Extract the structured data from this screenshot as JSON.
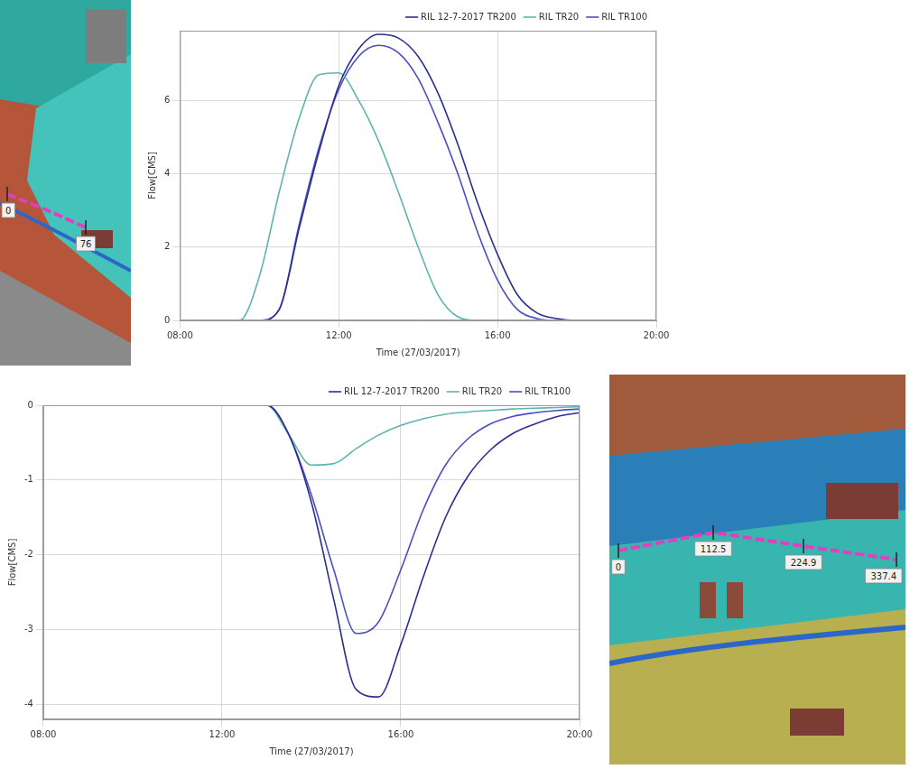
{
  "chart_data": [
    {
      "type": "line",
      "x_label": "Time (27/03/2017)",
      "y_label": "Flow[CMS]",
      "x": [
        8,
        8.5,
        9,
        9.5,
        10,
        10.5,
        11,
        11.5,
        12,
        12.5,
        13,
        13.5,
        14,
        14.5,
        15,
        15.5,
        16,
        16.5,
        17,
        17.5,
        18,
        18.5,
        19,
        19.5,
        20
      ],
      "xlim": [
        8,
        20
      ],
      "xticks": [
        {
          "value": 8,
          "label": "08:00"
        },
        {
          "value": 12,
          "label": "12:00"
        },
        {
          "value": 16,
          "label": "16:00"
        },
        {
          "value": 20,
          "label": "20:00"
        }
      ],
      "ylim": [
        0,
        7.9
      ],
      "yticks": [
        0,
        2,
        4,
        6
      ],
      "grid": true,
      "legend": "top-right",
      "series": [
        {
          "name": "RIL 12-7-2017 TR200",
          "color": "#2b2f8f",
          "values": [
            0,
            0,
            0,
            0,
            0,
            0.3,
            2.5,
            4.6,
            6.4,
            7.4,
            7.8,
            7.7,
            7.2,
            6.2,
            4.8,
            3.2,
            1.8,
            0.7,
            0.2,
            0.05,
            0,
            0,
            0,
            0,
            0
          ]
        },
        {
          "name": "RIL TR20",
          "color": "#5bb5b0",
          "values": [
            0,
            0,
            0,
            0,
            1.2,
            3.5,
            5.5,
            6.7,
            6.75,
            6.0,
            4.9,
            3.5,
            2.0,
            0.7,
            0.1,
            0,
            0,
            0,
            0,
            0,
            0,
            0,
            0,
            0,
            0
          ]
        },
        {
          "name": "RIL TR100",
          "color": "#4a4fc4",
          "values": [
            0,
            0,
            0,
            0,
            0,
            0.3,
            2.6,
            4.7,
            6.3,
            7.2,
            7.5,
            7.3,
            6.6,
            5.4,
            4.0,
            2.4,
            1.1,
            0.3,
            0.05,
            0,
            0,
            0,
            0,
            0,
            0
          ]
        }
      ]
    },
    {
      "type": "line",
      "x_label": "Time (27/03/2017)",
      "y_label": "Flow[CMS]",
      "x": [
        8,
        8.5,
        9,
        9.5,
        10,
        10.5,
        11,
        11.5,
        12,
        12.5,
        13,
        13.5,
        14,
        14.5,
        15,
        15.5,
        16,
        16.5,
        17,
        17.5,
        18,
        18.5,
        19,
        19.5,
        20
      ],
      "xlim": [
        8,
        20
      ],
      "xticks": [
        {
          "value": 8,
          "label": "08:00"
        },
        {
          "value": 12,
          "label": "12:00"
        },
        {
          "value": 16,
          "label": "16:00"
        },
        {
          "value": 20,
          "label": "20:00"
        }
      ],
      "ylim": [
        -4.2,
        0
      ],
      "yticks": [
        -4,
        -3,
        -2,
        -1,
        0
      ],
      "grid": true,
      "legend": "top-right",
      "series": [
        {
          "name": "RIL 12-7-2017 TR200",
          "color": "#2b2f8f",
          "values": [
            0,
            0,
            0,
            0,
            0,
            0,
            0,
            0,
            0,
            0,
            0,
            -0.4,
            -1.3,
            -2.6,
            -3.8,
            -3.9,
            -3.2,
            -2.3,
            -1.5,
            -0.95,
            -0.6,
            -0.38,
            -0.25,
            -0.15,
            -0.1
          ]
        },
        {
          "name": "RIL TR20",
          "color": "#5bb5b0",
          "values": [
            0,
            0,
            0,
            0,
            0,
            0,
            0,
            0,
            0,
            0,
            0,
            -0.4,
            -0.8,
            -0.78,
            -0.58,
            -0.4,
            -0.27,
            -0.18,
            -0.12,
            -0.09,
            -0.07,
            -0.05,
            -0.04,
            -0.03,
            -0.02
          ]
        },
        {
          "name": "RIL TR100",
          "color": "#4a4fc4",
          "values": [
            0,
            0,
            0,
            0,
            0,
            0,
            0,
            0,
            0,
            0,
            0,
            -0.4,
            -1.2,
            -2.2,
            -3.05,
            -2.9,
            -2.2,
            -1.4,
            -0.8,
            -0.45,
            -0.25,
            -0.15,
            -0.1,
            -0.07,
            -0.05
          ]
        }
      ]
    }
  ],
  "maps": [
    {
      "labels": [
        "0",
        "76"
      ]
    },
    {
      "labels": [
        "0",
        "112.5",
        "224.9",
        "337.4"
      ]
    }
  ]
}
